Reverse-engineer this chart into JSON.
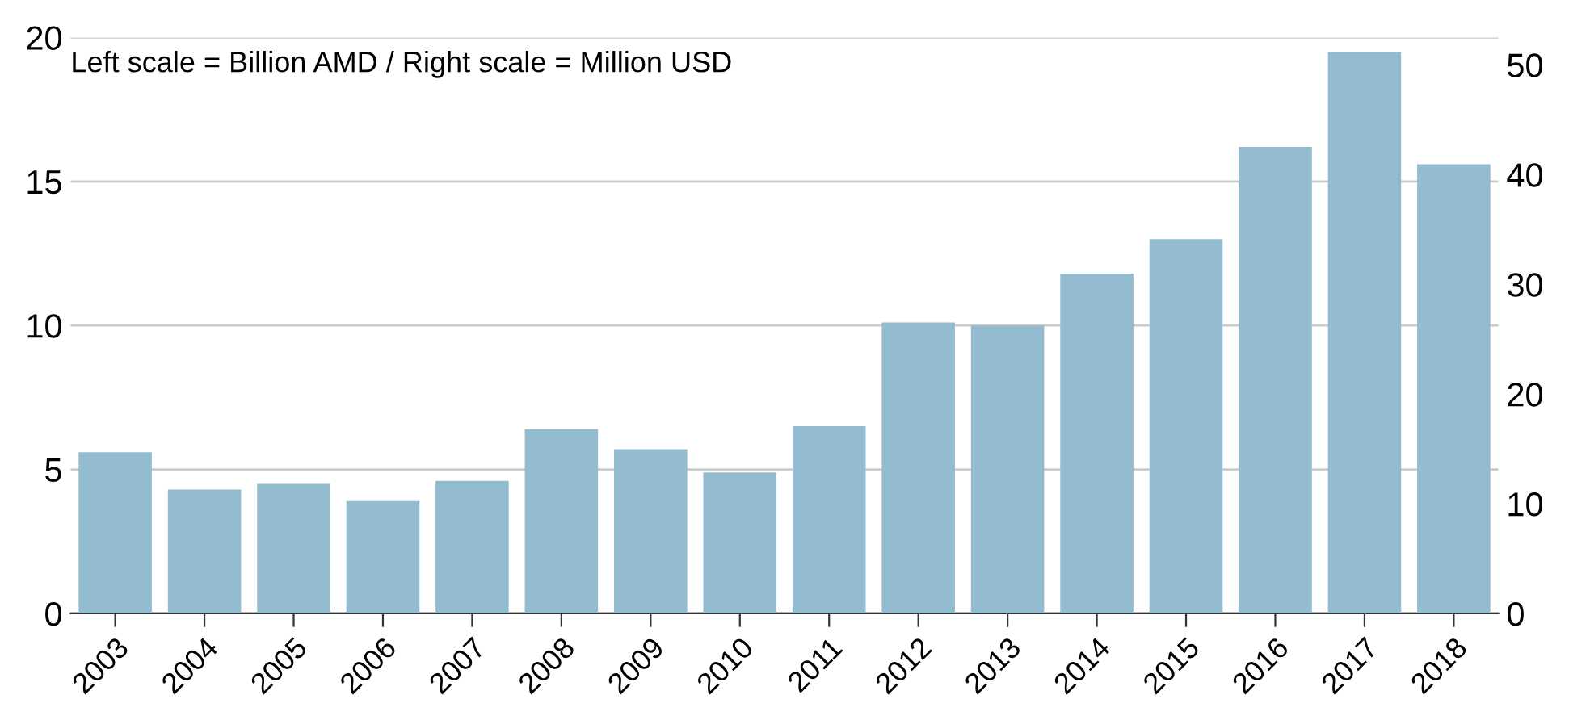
{
  "chart_data": {
    "type": "bar",
    "categories": [
      "2003",
      "2004",
      "2005",
      "2006",
      "2007",
      "2008",
      "2009",
      "2010",
      "2011",
      "2012",
      "2013",
      "2014",
      "2015",
      "2016",
      "2017",
      "2018"
    ],
    "values": [
      5.6,
      4.3,
      4.5,
      3.9,
      4.6,
      6.4,
      5.7,
      4.9,
      6.5,
      10.1,
      10.0,
      11.8,
      13.0,
      16.2,
      19.5,
      15.6
    ],
    "color": "#94bcd0",
    "ylim": [
      0,
      20
    ],
    "yticks": [
      0,
      5,
      10,
      15,
      20
    ],
    "y2lim": [
      0,
      52.5
    ],
    "y2ticks": [
      0,
      10,
      20,
      30,
      40,
      50
    ],
    "grid": "y",
    "annotations": [
      "Left scale = Billion AMD / Right scale = Million USD"
    ]
  }
}
